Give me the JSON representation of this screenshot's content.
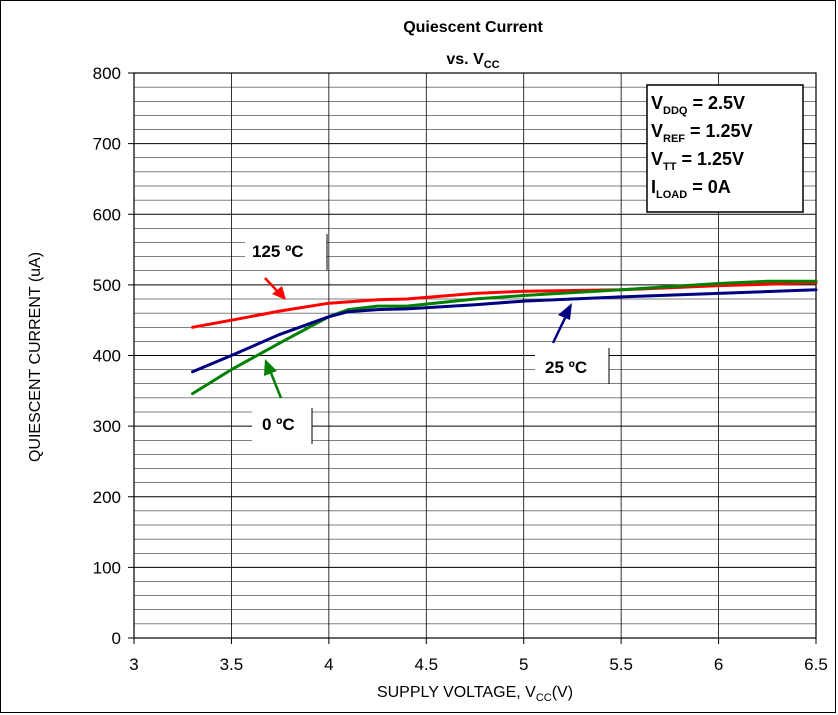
{
  "chart_data": {
    "type": "line",
    "title": "Quiescent Current",
    "subtitle_main": "vs. V",
    "subtitle_sub": "CC",
    "ylabel": "QUIESCENT CURRENT (uA)",
    "xlabel_main": "SUPPLY VOLTAGE, V",
    "xlabel_sub": "CC",
    "xlabel_suffix": "(V)",
    "xlim": [
      3,
      6.5
    ],
    "ylim": [
      0,
      800
    ],
    "xticks": [
      "3",
      "3.5",
      "4",
      "4.5",
      "5",
      "5.5",
      "6",
      "6.5"
    ],
    "yticks": [
      "0",
      "100",
      "200",
      "300",
      "400",
      "500",
      "600",
      "700",
      "800"
    ],
    "grid": true,
    "series": [
      {
        "name": "125 ºC",
        "color": "#ff0000",
        "x": [
          3.3,
          3.5,
          3.75,
          4.0,
          4.25,
          4.4,
          4.75,
          5.0,
          5.5,
          6.0,
          6.5
        ],
        "y": [
          440,
          450,
          463,
          474,
          479,
          480,
          488,
          491,
          493,
          499,
          503
        ]
      },
      {
        "name": "0 ºC",
        "color": "#008000",
        "x": [
          3.3,
          3.5,
          3.75,
          4.0,
          4.1,
          4.25,
          4.4,
          4.75,
          5.0,
          5.5,
          6.0,
          6.25,
          6.5
        ],
        "y": [
          346,
          380,
          418,
          455,
          465,
          470,
          470,
          480,
          485,
          493,
          502,
          505,
          505
        ]
      },
      {
        "name": "25 ºC",
        "color": "#000080",
        "x": [
          3.3,
          3.5,
          3.75,
          4.0,
          4.1,
          4.25,
          4.4,
          4.75,
          5.0,
          5.5,
          6.0,
          6.5
        ],
        "y": [
          377,
          400,
          430,
          455,
          462,
          465,
          466,
          472,
          477,
          483,
          488,
          493
        ]
      }
    ],
    "annotations": {
      "label_125": "125 ºC",
      "label_0": "0 ºC",
      "label_25": "25 ºC"
    },
    "conditions": [
      {
        "main": "V",
        "sub": "DDQ",
        "value": " = 2.5V"
      },
      {
        "main": "V",
        "sub": "REF",
        "value": " = 1.25V"
      },
      {
        "main": "V",
        "sub": "TT",
        "value": "   = 1.25V"
      },
      {
        "main": "I",
        "sub": "LOAD",
        "value": " = 0A"
      }
    ]
  }
}
